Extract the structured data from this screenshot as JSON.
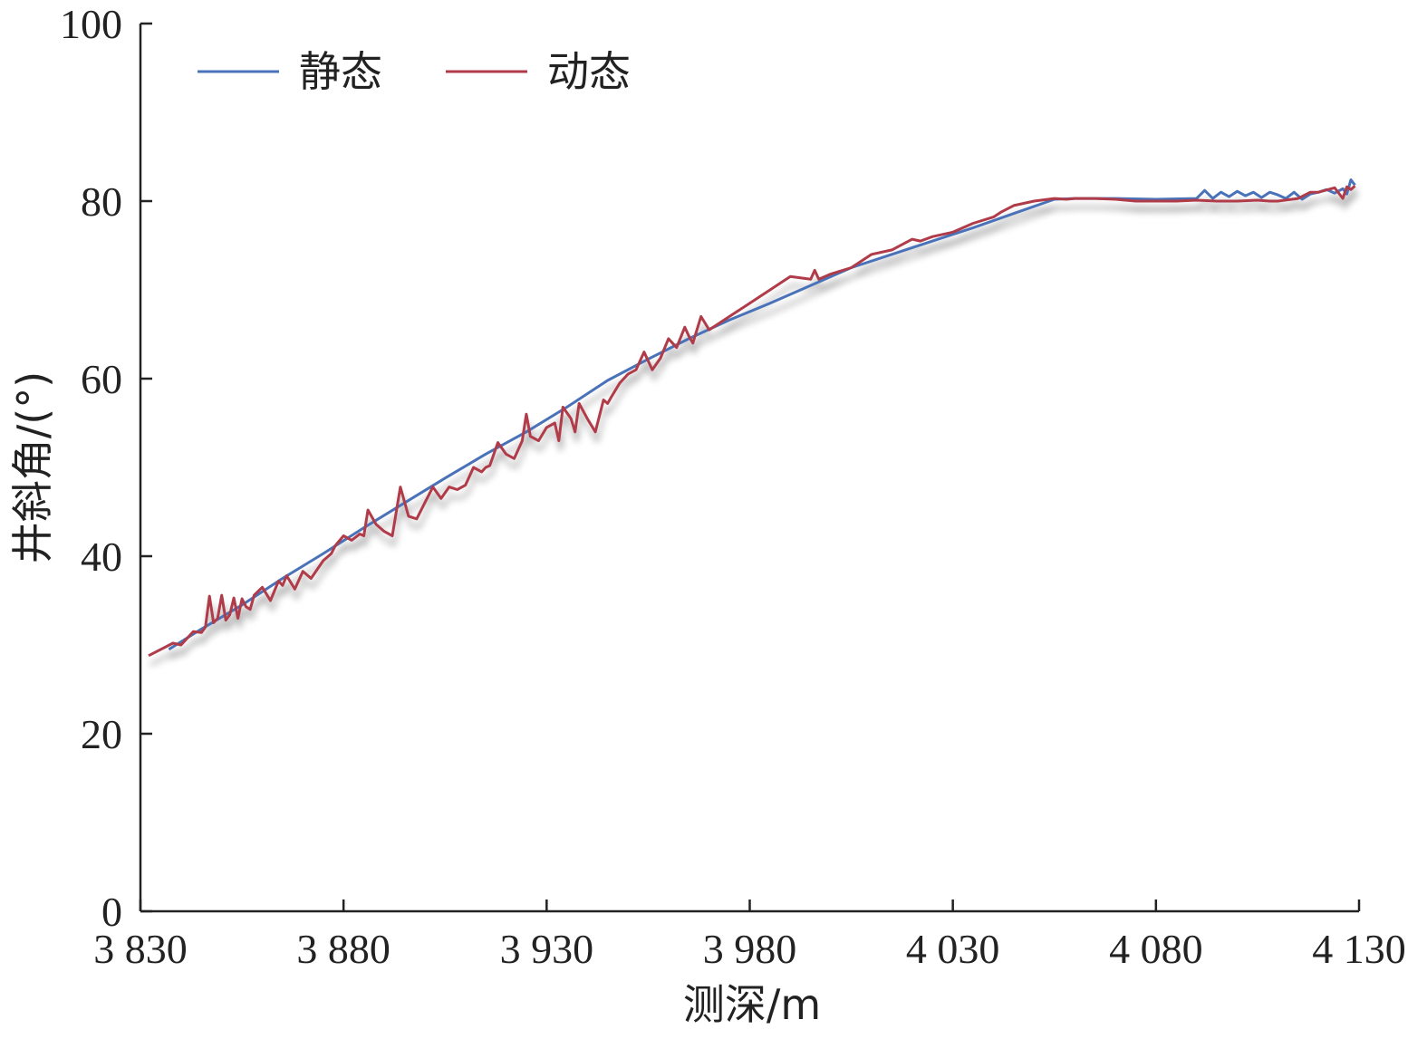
{
  "chart_data": {
    "type": "line",
    "xlabel": "测深/m",
    "ylabel": "井斜角/(°)",
    "xlim": [
      3830,
      4130
    ],
    "ylim": [
      0,
      100
    ],
    "x_ticks": [
      3830,
      3880,
      3930,
      3980,
      4030,
      4080,
      4130
    ],
    "x_tick_labels": [
      "3 830",
      "3 880",
      "3 930",
      "3 980",
      "4 030",
      "4 080",
      "4 130"
    ],
    "y_ticks": [
      0,
      20,
      40,
      60,
      80,
      100
    ],
    "y_tick_labels": [
      "0",
      "20",
      "40",
      "60",
      "80",
      "100"
    ],
    "grid": false,
    "legend_position": "top-left",
    "series": [
      {
        "name": "静态",
        "color": "#4a72b8",
        "x": [
          3837,
          3845,
          3855,
          3865,
          3875,
          3885,
          3895,
          3905,
          3915,
          3925,
          3935,
          3945,
          3955,
          3965,
          3975,
          3985,
          3995,
          4005,
          4015,
          4025,
          4035,
          4045,
          4055,
          4060,
          4070,
          4080,
          4090,
          4092,
          4094,
          4096,
          4098,
          4100,
          4102,
          4104,
          4106,
          4108,
          4110,
          4112,
          4114,
          4116,
          4118,
          4120,
          4122,
          4124,
          4126,
          4127,
          4128,
          4129
        ],
        "y": [
          29.5,
          31.8,
          34.5,
          37.5,
          40.3,
          43.2,
          46.0,
          48.8,
          51.5,
          54.0,
          56.8,
          59.8,
          62.2,
          64.5,
          66.6,
          68.5,
          70.5,
          72.5,
          74.0,
          75.5,
          77.0,
          78.6,
          80.2,
          80.3,
          80.3,
          80.2,
          80.3,
          81.2,
          80.3,
          81.0,
          80.5,
          81.1,
          80.6,
          81.0,
          80.4,
          81.0,
          80.7,
          80.3,
          81.0,
          80.2,
          80.8,
          81.0,
          81.3,
          80.9,
          81.4,
          80.8,
          82.4,
          81.8
        ]
      },
      {
        "name": "动态",
        "color": "#b03a48",
        "x": [
          3832,
          3835,
          3838,
          3840,
          3843,
          3845,
          3846,
          3847,
          3848,
          3849,
          3850,
          3851,
          3852,
          3853,
          3854,
          3855,
          3856,
          3857,
          3858,
          3860,
          3862,
          3864,
          3865,
          3866,
          3868,
          3870,
          3872,
          3875,
          3877,
          3878,
          3880,
          3882,
          3884,
          3885,
          3886,
          3888,
          3890,
          3892,
          3894,
          3896,
          3898,
          3900,
          3902,
          3904,
          3906,
          3908,
          3910,
          3912,
          3914,
          3915,
          3916,
          3918,
          3920,
          3922,
          3924,
          3925,
          3926,
          3928,
          3930,
          3932,
          3933,
          3934,
          3936,
          3937,
          3938,
          3940,
          3942,
          3944,
          3945,
          3946,
          3948,
          3950,
          3952,
          3954,
          3956,
          3958,
          3960,
          3961,
          3962,
          3964,
          3965,
          3966,
          3968,
          3970,
          3975,
          3980,
          3985,
          3990,
          3995,
          3996,
          3997,
          4000,
          4005,
          4010,
          4015,
          4020,
          4022,
          4025,
          4030,
          4035,
          4040,
          4042,
          4045,
          4050,
          4055,
          4058,
          4060,
          4065,
          4070,
          4075,
          4080,
          4085,
          4090,
          4095,
          4100,
          4105,
          4108,
          4110,
          4115,
          4118,
          4120,
          4124,
          4126,
          4127,
          4128,
          4129
        ],
        "y": [
          28.8,
          29.5,
          30.2,
          30.0,
          31.5,
          31.4,
          32.0,
          35.5,
          32.5,
          33.0,
          35.6,
          32.8,
          33.4,
          35.3,
          33.0,
          35.2,
          34.3,
          34.0,
          35.6,
          36.5,
          35.0,
          37.2,
          36.7,
          37.8,
          36.3,
          38.3,
          37.5,
          39.5,
          40.3,
          41.2,
          42.3,
          41.8,
          42.5,
          42.3,
          45.2,
          43.6,
          42.8,
          42.3,
          47.8,
          44.5,
          44.2,
          46.0,
          47.8,
          46.5,
          47.8,
          47.5,
          48.0,
          50.0,
          49.5,
          50.0,
          50.2,
          52.8,
          51.5,
          51.0,
          53.0,
          56.0,
          53.5,
          53.0,
          54.5,
          55.0,
          53.0,
          56.8,
          55.5,
          54.0,
          57.2,
          55.5,
          54.0,
          57.6,
          57.2,
          58.0,
          59.5,
          60.5,
          61.0,
          63.0,
          61.0,
          62.3,
          64.5,
          64.0,
          63.5,
          65.8,
          64.8,
          64.0,
          67.0,
          65.5,
          67.0,
          68.5,
          70.0,
          71.5,
          71.2,
          72.2,
          71.2,
          71.8,
          72.5,
          74.0,
          74.5,
          75.7,
          75.5,
          76.0,
          76.5,
          77.5,
          78.2,
          78.8,
          79.5,
          80.0,
          80.3,
          80.2,
          80.3,
          80.3,
          80.2,
          80.0,
          80.0,
          80.0,
          80.1,
          80.0,
          80.0,
          80.1,
          80.0,
          80.0,
          80.3,
          81.0,
          81.0,
          81.5,
          80.3,
          81.6,
          81.3,
          81.7
        ]
      }
    ]
  }
}
